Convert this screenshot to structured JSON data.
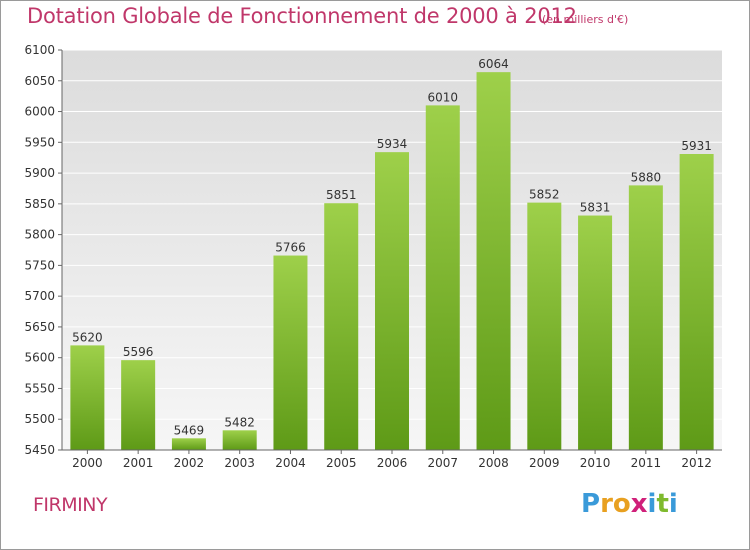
{
  "header": {
    "title": "Dotation Globale de Fonctionnement de 2000 à 2012",
    "unit_note": "(en milliers d'€)"
  },
  "footer": {
    "commune": "FIRMINY",
    "logo_letters": [
      "P",
      "r",
      "o",
      "x",
      "i",
      "t",
      "i"
    ],
    "logo_colors": [
      "#3a9ad9",
      "#e8a020",
      "#e8a020",
      "#d0207a",
      "#3a9ad9",
      "#7fba2e",
      "#3a9ad9"
    ]
  },
  "chart_data": {
    "type": "bar",
    "categories": [
      "2000",
      "2001",
      "2002",
      "2003",
      "2004",
      "2005",
      "2006",
      "2007",
      "2008",
      "2009",
      "2010",
      "2011",
      "2012"
    ],
    "values": [
      5620,
      5596,
      5469,
      5482,
      5766,
      5851,
      5934,
      6010,
      6064,
      5852,
      5831,
      5880,
      5931
    ],
    "title": "Dotation Globale de Fonctionnement de 2000 à 2012",
    "ylim": [
      5450,
      6100
    ],
    "yticks": [
      5450,
      5500,
      5550,
      5600,
      5650,
      5700,
      5750,
      5800,
      5850,
      5900,
      5950,
      6000,
      6050,
      6100
    ],
    "grid": true,
    "colors": {
      "bar_top": "#9ed04a",
      "bar_bottom": "#5e9a17",
      "plot_background_top": "#dcdcdc",
      "plot_background_bottom": "#f6f6f6",
      "grid": "#ffffff",
      "axis": "#666666",
      "text": "#333333"
    }
  }
}
